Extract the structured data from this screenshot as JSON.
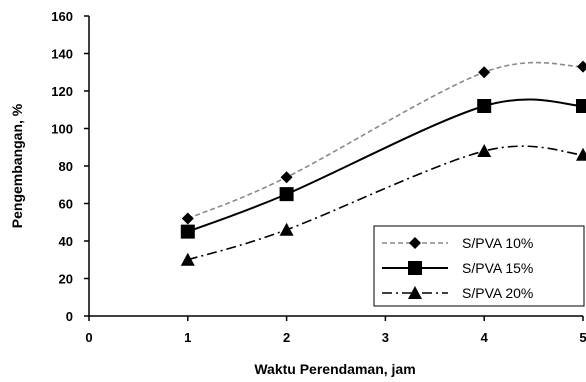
{
  "chart_data": {
    "type": "line",
    "title": "",
    "xlabel": "Waktu Perendaman, jam",
    "ylabel": "Pengembangan, %",
    "xlim": [
      0,
      5
    ],
    "ylim": [
      0,
      160
    ],
    "xticks": [
      0,
      1,
      2,
      3,
      4,
      5
    ],
    "yticks": [
      0,
      20,
      40,
      60,
      80,
      100,
      120,
      140,
      160
    ],
    "grid": false,
    "legend_position": "bottom-right",
    "x": [
      1,
      2,
      4,
      5
    ],
    "series": [
      {
        "name": "S/PVA 10%",
        "values": [
          52,
          74,
          130,
          133
        ],
        "marker": "diamond",
        "line": "dashed",
        "color": "#8a8a8a"
      },
      {
        "name": "S/PVA 15%",
        "values": [
          45,
          65,
          112,
          112
        ],
        "marker": "square",
        "line": "solid",
        "color": "#000000"
      },
      {
        "name": "S/PVA 20%",
        "values": [
          30,
          46,
          88,
          86
        ],
        "marker": "triangle",
        "line": "dash-dot",
        "color": "#000000"
      }
    ]
  }
}
